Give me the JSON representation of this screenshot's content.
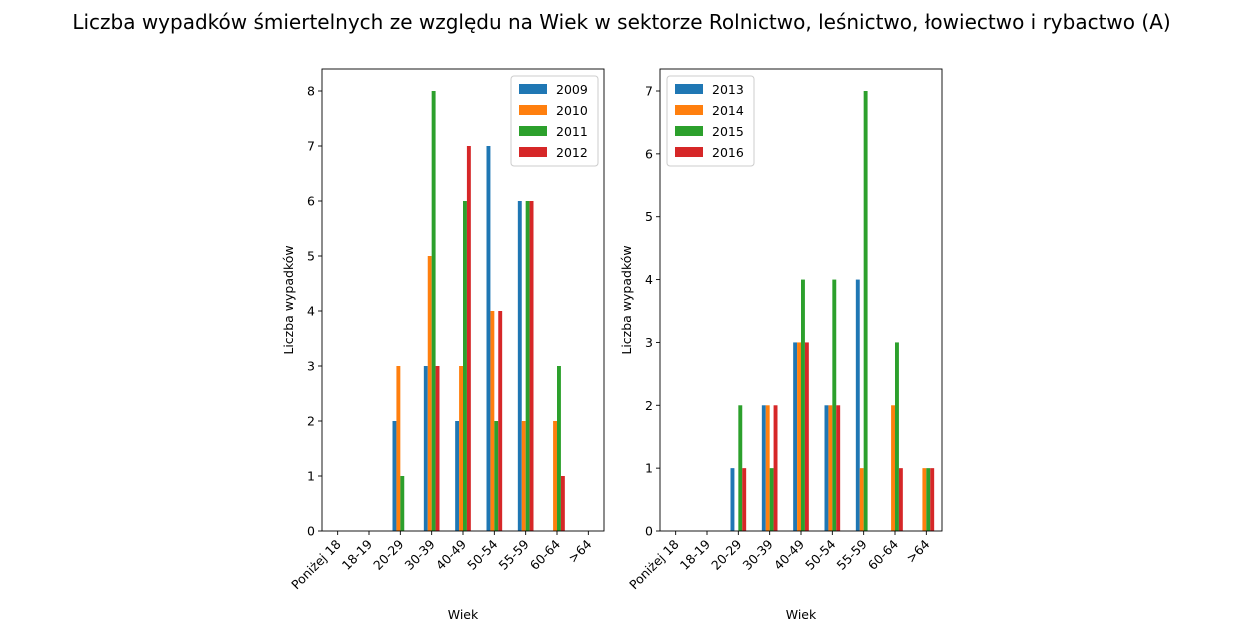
{
  "title": "Liczba wypadków śmiertelnych ze względu na Wiek w sektorze Rolnictwo, leśnictwo, łowiectwo i rybactwo (A)",
  "colors": [
    "#1f77b4",
    "#ff7f0e",
    "#2ca02c",
    "#d62728"
  ],
  "chart_data": [
    {
      "type": "bar",
      "xlabel": "Wiek",
      "ylabel": "Liczba wypadków",
      "categories": [
        "Poniżej 18",
        "18-19",
        "20-29",
        "30-39",
        "40-49",
        "50-54",
        "55-59",
        "60-64",
        ">64"
      ],
      "ylim": [
        0,
        8.4
      ],
      "yticks": [
        "0",
        "1",
        "2",
        "3",
        "4",
        "5",
        "6",
        "7",
        "8"
      ],
      "legend_position": "top-right",
      "series": [
        {
          "name": "2009",
          "values": [
            0,
            0,
            2,
            3,
            2,
            7,
            6,
            0,
            0
          ]
        },
        {
          "name": "2010",
          "values": [
            0,
            0,
            3,
            5,
            3,
            4,
            2,
            2,
            0
          ]
        },
        {
          "name": "2011",
          "values": [
            0,
            0,
            1,
            8,
            6,
            2,
            6,
            3,
            0
          ]
        },
        {
          "name": "2012",
          "values": [
            0,
            0,
            0,
            3,
            7,
            4,
            6,
            1,
            0
          ]
        }
      ]
    },
    {
      "type": "bar",
      "xlabel": "Wiek",
      "ylabel": "Liczba wypadków",
      "categories": [
        "Poniżej 18",
        "18-19",
        "20-29",
        "30-39",
        "40-49",
        "50-54",
        "55-59",
        "60-64",
        ">64"
      ],
      "ylim": [
        0,
        7.35
      ],
      "yticks": [
        "0",
        "1",
        "2",
        "3",
        "4",
        "5",
        "6",
        "7"
      ],
      "legend_position": "top-left",
      "series": [
        {
          "name": "2013",
          "values": [
            0,
            0,
            1,
            2,
            3,
            2,
            4,
            0,
            0
          ]
        },
        {
          "name": "2014",
          "values": [
            0,
            0,
            0,
            2,
            3,
            2,
            1,
            2,
            1
          ]
        },
        {
          "name": "2015",
          "values": [
            0,
            0,
            2,
            1,
            4,
            4,
            7,
            3,
            1
          ]
        },
        {
          "name": "2016",
          "values": [
            0,
            0,
            1,
            2,
            3,
            2,
            0,
            1,
            1
          ]
        }
      ]
    }
  ]
}
